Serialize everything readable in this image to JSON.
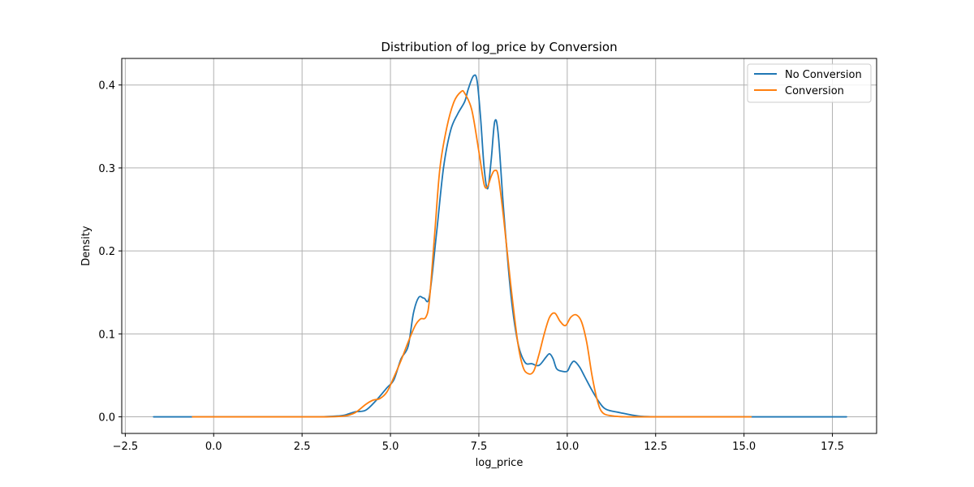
{
  "chart_data": {
    "type": "line",
    "title": "Distribution of log_price by Conversion",
    "xlabel": "log_price",
    "ylabel": "Density",
    "xlim": [
      -2.6,
      18.75
    ],
    "ylim": [
      -0.02,
      0.432
    ],
    "xticks": [
      -2.5,
      0.0,
      2.5,
      5.0,
      7.5,
      10.0,
      12.5,
      15.0,
      17.5
    ],
    "xtick_labels": [
      "−2.5",
      "0.0",
      "2.5",
      "5.0",
      "7.5",
      "10.0",
      "12.5",
      "15.0",
      "17.5"
    ],
    "yticks": [
      0.0,
      0.1,
      0.2,
      0.3,
      0.4
    ],
    "ytick_labels": [
      "0.0",
      "0.1",
      "0.2",
      "0.3",
      "0.4"
    ],
    "grid": true,
    "legend_position": "top-right",
    "series": [
      {
        "name": "No Conversion",
        "color": "#1f77b4",
        "x": [
          -1.7,
          0.0,
          2.5,
          3.0,
          3.5,
          3.7,
          4.0,
          4.3,
          4.6,
          4.9,
          5.1,
          5.3,
          5.5,
          5.65,
          5.8,
          5.95,
          6.1,
          6.3,
          6.5,
          6.7,
          6.9,
          7.1,
          7.2,
          7.35,
          7.45,
          7.55,
          7.65,
          7.75,
          7.85,
          7.95,
          8.05,
          8.2,
          8.4,
          8.6,
          8.8,
          9.0,
          9.2,
          9.4,
          9.5,
          9.6,
          9.7,
          9.85,
          10.0,
          10.1,
          10.2,
          10.35,
          10.5,
          10.7,
          10.9,
          11.1,
          11.5,
          12.0,
          12.5,
          13.0,
          15.0,
          17.9
        ],
        "y": [
          0.0,
          0.0,
          0.0,
          0.0,
          0.001,
          0.002,
          0.006,
          0.008,
          0.02,
          0.035,
          0.045,
          0.07,
          0.085,
          0.125,
          0.144,
          0.143,
          0.145,
          0.22,
          0.3,
          0.345,
          0.365,
          0.38,
          0.395,
          0.411,
          0.405,
          0.36,
          0.3,
          0.275,
          0.31,
          0.356,
          0.34,
          0.25,
          0.15,
          0.09,
          0.066,
          0.064,
          0.062,
          0.072,
          0.076,
          0.07,
          0.058,
          0.055,
          0.055,
          0.063,
          0.067,
          0.06,
          0.048,
          0.032,
          0.018,
          0.009,
          0.005,
          0.001,
          0.0,
          0.0,
          0.0,
          0.0
        ]
      },
      {
        "name": "Conversion",
        "color": "#ff7f0e",
        "x": [
          -0.6,
          2.5,
          3.2,
          3.7,
          4.0,
          4.3,
          4.5,
          4.7,
          4.9,
          5.1,
          5.3,
          5.5,
          5.7,
          5.85,
          6.0,
          6.1,
          6.25,
          6.4,
          6.6,
          6.8,
          7.0,
          7.1,
          7.3,
          7.5,
          7.65,
          7.75,
          7.85,
          7.95,
          8.05,
          8.2,
          8.4,
          8.6,
          8.75,
          8.9,
          9.05,
          9.2,
          9.35,
          9.5,
          9.65,
          9.8,
          9.95,
          10.1,
          10.25,
          10.4,
          10.55,
          10.7,
          10.85,
          11.0,
          11.3,
          11.7,
          12.5,
          15.2
        ],
        "y": [
          0.0,
          0.0,
          0.0,
          0.001,
          0.005,
          0.015,
          0.02,
          0.022,
          0.03,
          0.048,
          0.068,
          0.09,
          0.11,
          0.118,
          0.12,
          0.14,
          0.22,
          0.3,
          0.35,
          0.38,
          0.392,
          0.39,
          0.37,
          0.32,
          0.28,
          0.278,
          0.29,
          0.297,
          0.29,
          0.24,
          0.16,
          0.09,
          0.06,
          0.052,
          0.055,
          0.075,
          0.1,
          0.12,
          0.125,
          0.115,
          0.11,
          0.12,
          0.123,
          0.115,
          0.09,
          0.05,
          0.02,
          0.005,
          0.001,
          0.0,
          0.0,
          0.0
        ]
      }
    ]
  }
}
